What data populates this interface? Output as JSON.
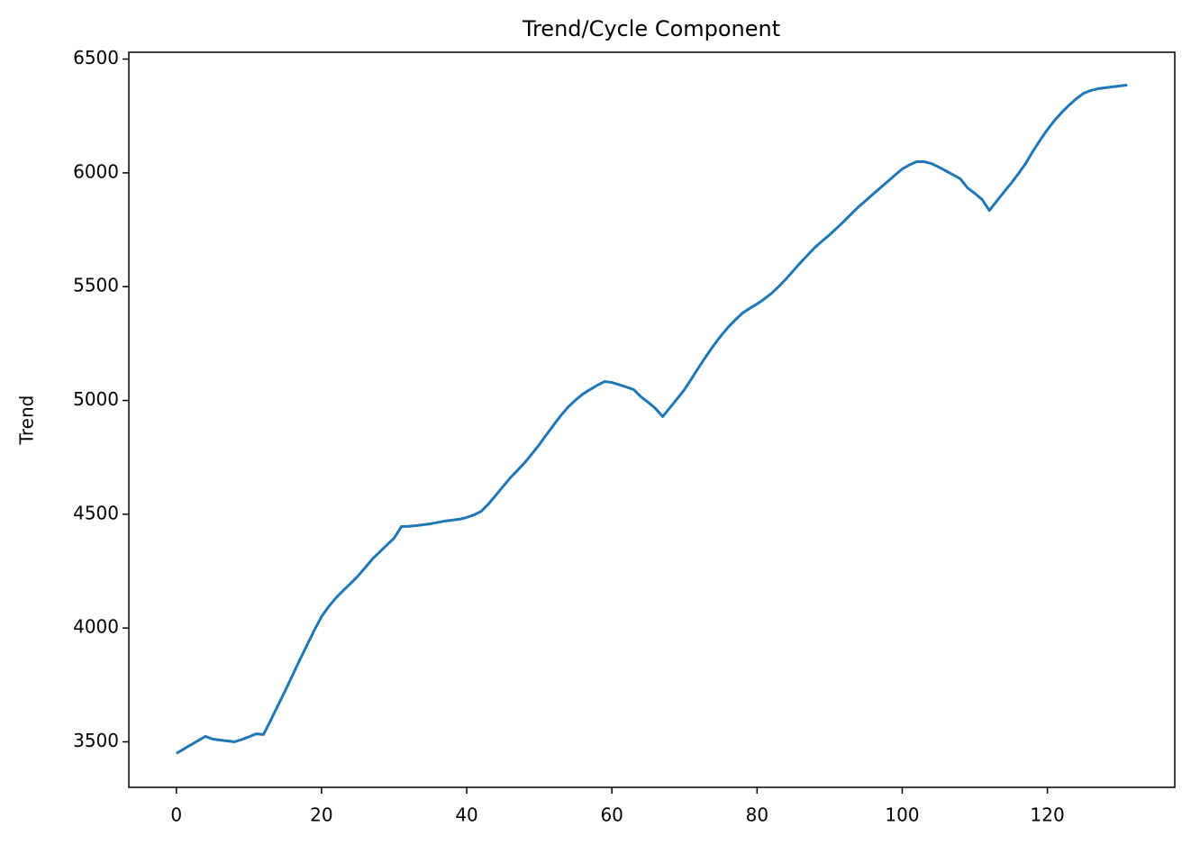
{
  "chart_data": {
    "type": "line",
    "title": "Trend/Cycle Component",
    "y_label": "Trend",
    "x": [
      0,
      1,
      2,
      3,
      4,
      5,
      6,
      7,
      8,
      9,
      10,
      11,
      12,
      13,
      14,
      15,
      16,
      17,
      18,
      19,
      20,
      21,
      22,
      23,
      24,
      25,
      26,
      27,
      28,
      29,
      30,
      31,
      32,
      33,
      34,
      35,
      36,
      37,
      38,
      39,
      40,
      41,
      42,
      43,
      44,
      45,
      46,
      47,
      48,
      49,
      50,
      51,
      52,
      53,
      54,
      55,
      56,
      57,
      58,
      59,
      60,
      61,
      62,
      63,
      64,
      65,
      66,
      67,
      68,
      69,
      70,
      71,
      72,
      73,
      74,
      75,
      76,
      77,
      78,
      79,
      80,
      81,
      82,
      83,
      84,
      85,
      86,
      87,
      88,
      89,
      90,
      91,
      92,
      93,
      94,
      95,
      96,
      97,
      98,
      99,
      100,
      101,
      102,
      103,
      104,
      105,
      106,
      107,
      108,
      109,
      110,
      111,
      112,
      113,
      114,
      115,
      116,
      117,
      118,
      119,
      120,
      121,
      122,
      123,
      124,
      125,
      126,
      127,
      128,
      129,
      130,
      131
    ],
    "series": [
      {
        "color": "#1f77b4",
        "values": [
          3449,
          3468,
          3487,
          3505,
          3524,
          3512,
          3508,
          3504,
          3500,
          3510,
          3522,
          3535,
          3532,
          3595,
          3660,
          3725,
          3792,
          3860,
          3925,
          3990,
          4050,
          4095,
          4133,
          4165,
          4196,
          4228,
          4265,
          4303,
          4334,
          4365,
          4395,
          4446,
          4447,
          4450,
          4454,
          4458,
          4464,
          4470,
          4474,
          4478,
          4486,
          4497,
          4513,
          4545,
          4583,
          4622,
          4660,
          4693,
          4727,
          4766,
          4806,
          4850,
          4893,
          4935,
          4972,
          5002,
          5028,
          5048,
          5067,
          5083,
          5079,
          5069,
          5059,
          5048,
          5016,
          4992,
          4965,
          4929,
          4968,
          5008,
          5048,
          5097,
          5147,
          5195,
          5241,
          5283,
          5321,
          5354,
          5384,
          5405,
          5424,
          5446,
          5471,
          5501,
          5534,
          5570,
          5606,
          5640,
          5673,
          5701,
          5728,
          5758,
          5788,
          5820,
          5851,
          5879,
          5907,
          5935,
          5962,
          5990,
          6017,
          6035,
          6049,
          6049,
          6041,
          6026,
          6009,
          5992,
          5974,
          5934,
          5910,
          5883,
          5835,
          5875,
          5915,
          5954,
          5996,
          6041,
          6095,
          6144,
          6190,
          6231,
          6266,
          6298,
          6326,
          6350,
          6362,
          6370,
          6374,
          6378,
          6382,
          6386
        ]
      }
    ],
    "xlim": [
      -6.55,
      137.55
    ],
    "ylim": [
      3300,
      6530
    ],
    "xticks": [
      0,
      20,
      40,
      60,
      80,
      100,
      120
    ],
    "yticks": [
      3500,
      4000,
      4500,
      5000,
      5500,
      6000,
      6500
    ]
  }
}
